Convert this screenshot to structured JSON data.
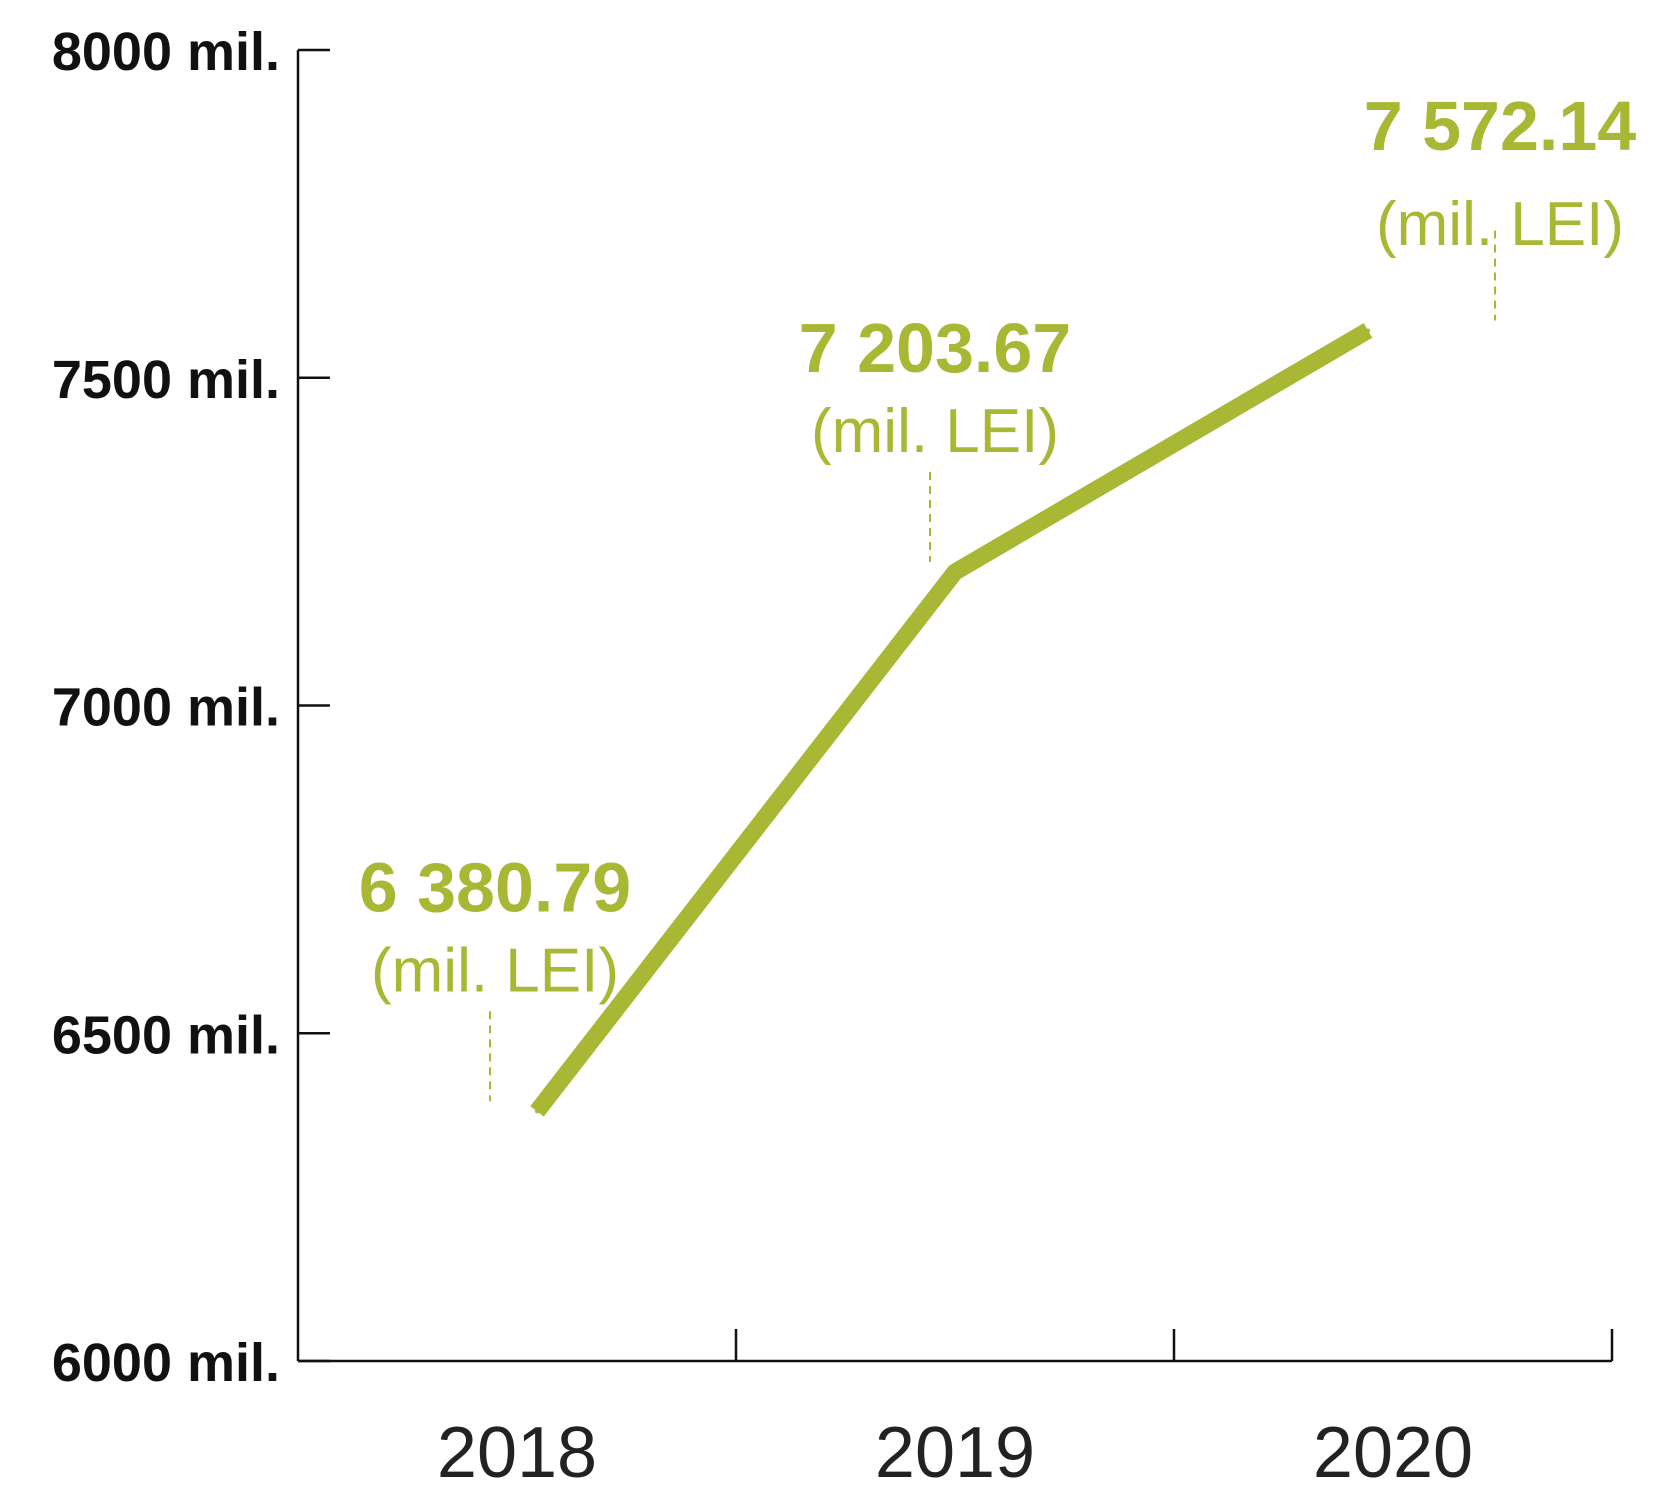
{
  "chart_data": {
    "type": "line",
    "title": "",
    "xlabel": "",
    "ylabel": "",
    "categories": [
      "2018",
      "2019",
      "2020"
    ],
    "series": [
      {
        "values": [
          6380.79,
          7203.67,
          7572.14
        ]
      }
    ],
    "data_labels": [
      "6 380.79",
      "7 203.67",
      "7 572.14"
    ],
    "data_label_unit": "(mil. LEI)",
    "ylim": [
      6000,
      8000
    ],
    "yticks": [
      {
        "value": 6000,
        "label": "6000 mil."
      },
      {
        "value": 6500,
        "label": "6500 mil."
      },
      {
        "value": 7000,
        "label": "7000 mil."
      },
      {
        "value": 7500,
        "label": "7500 mil."
      },
      {
        "value": 8000,
        "label": "8000 mil."
      }
    ],
    "grid": false,
    "legend": "none",
    "colors": {
      "line": "#a8b834",
      "axis": "#111111",
      "tick_label": "#111111"
    }
  }
}
